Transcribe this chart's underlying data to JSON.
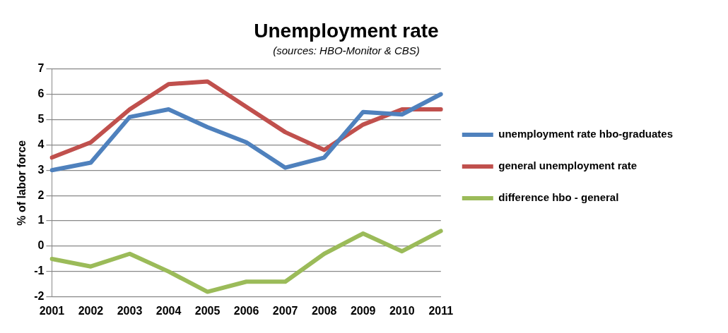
{
  "chart_data": {
    "type": "line",
    "title": "Unemployment rate",
    "subtitle": "(sources: HBO-Monitor & CBS)",
    "ylabel": "% of labor force",
    "categories": [
      "2001",
      "2002",
      "2003",
      "2004",
      "2005",
      "2006",
      "2007",
      "2008",
      "2009",
      "2010",
      "2011"
    ],
    "series": [
      {
        "name": "unemployment rate hbo-graduates",
        "color": "#4f81bd",
        "values": [
          3.0,
          3.3,
          5.1,
          5.4,
          4.7,
          4.1,
          3.1,
          3.5,
          5.3,
          5.2,
          6.0
        ]
      },
      {
        "name": "general unemployment rate",
        "color": "#c0504d",
        "values": [
          3.5,
          4.1,
          5.4,
          6.4,
          6.5,
          5.5,
          4.5,
          3.8,
          4.8,
          5.4,
          5.4
        ]
      },
      {
        "name": "difference hbo - general",
        "color": "#9bbb59",
        "values": [
          -0.5,
          -0.8,
          -0.3,
          -1.0,
          -1.8,
          -1.4,
          -1.4,
          -0.3,
          0.5,
          -0.2,
          0.6
        ]
      }
    ],
    "ylim": [
      -2,
      7
    ],
    "yticks": [
      -2,
      -1,
      0,
      1,
      2,
      3,
      4,
      5,
      6,
      7
    ],
    "grid": "y",
    "legend": "right",
    "marker": "none",
    "line_style": "solid"
  }
}
